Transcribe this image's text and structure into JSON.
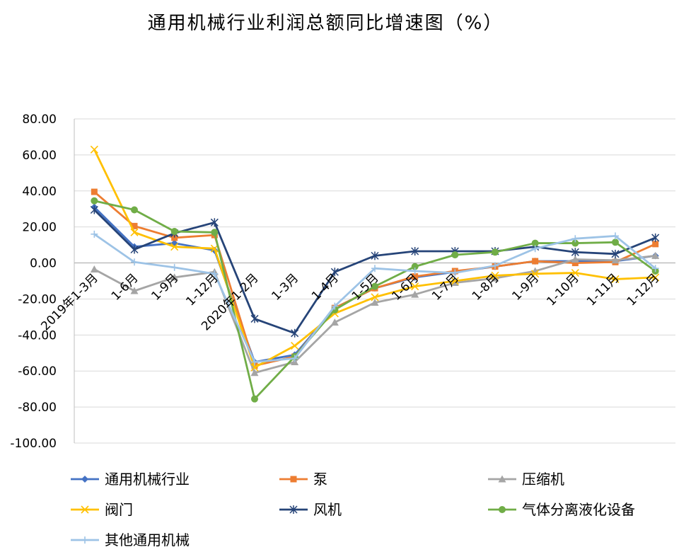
{
  "chart_data": {
    "type": "line",
    "title": "通用机械行业利润总额同比增速图（%）",
    "xlabel": "",
    "ylabel": "",
    "ylim": [
      -100,
      80
    ],
    "yticks": [
      "80.00",
      "60.00",
      "40.00",
      "20.00",
      "0.00",
      "-20.00",
      "-40.00",
      "-60.00",
      "-80.00",
      "-100.00"
    ],
    "grid": true,
    "legend_position": "bottom",
    "categories": [
      "2019年1-3月",
      "1-6月",
      "1-9月",
      "1-12月",
      "2020年1-2月",
      "1-3月",
      "1-4月",
      "1-5月",
      "1-6月",
      "1-7月",
      "1-8月",
      "1-9月",
      "1-10月",
      "1-11月",
      "1-12月"
    ],
    "series": [
      {
        "name": "通用机械行业",
        "color": "#4472C4",
        "marker": "diamond",
        "values": [
          31,
          9,
          11,
          7,
          -55,
          -51,
          -25,
          -14,
          -8,
          -5,
          -2,
          1,
          1,
          1,
          4
        ]
      },
      {
        "name": "泵",
        "color": "#ED7D31",
        "marker": "square",
        "values": [
          39.5,
          20.5,
          14,
          15.5,
          -57,
          -52,
          -25,
          -14,
          -7.5,
          -4.5,
          -2,
          1,
          0,
          0.5,
          10.5
        ]
      },
      {
        "name": "压缩机",
        "color": "#A5A5A5",
        "marker": "triangle",
        "values": [
          -3.5,
          -15.5,
          -8,
          -5,
          -61,
          -55,
          -33,
          -22,
          -17.5,
          -11,
          -8.5,
          -4.5,
          2,
          1.5,
          4
        ]
      },
      {
        "name": "阀门",
        "color": "#FFC000",
        "marker": "x",
        "values": [
          63,
          17,
          9,
          8,
          -58,
          -46,
          -28,
          -19,
          -13,
          -10,
          -7,
          -6,
          -5.5,
          -9,
          -8
        ]
      },
      {
        "name": "风机",
        "color": "#264478",
        "marker": "star",
        "values": [
          29.5,
          7.5,
          16.5,
          22.5,
          -31,
          -39,
          -5,
          4,
          6.5,
          6.5,
          6.5,
          9,
          6,
          5,
          14
        ]
      },
      {
        "name": "气体分离液化设备",
        "color": "#70AD47",
        "marker": "circle",
        "values": [
          34.5,
          29.5,
          17.5,
          17,
          -75.5,
          -52,
          -26,
          -13,
          -2,
          4.5,
          6,
          11,
          11,
          11.5,
          -4.5
        ]
      },
      {
        "name": "其他通用机械",
        "color": "#9DC3E6",
        "marker": "plus",
        "values": [
          16,
          0.5,
          -2.5,
          -6,
          -55,
          -53,
          -24,
          -3,
          -4.5,
          -5.5,
          -1.5,
          8,
          13.5,
          15,
          -3
        ]
      }
    ]
  }
}
